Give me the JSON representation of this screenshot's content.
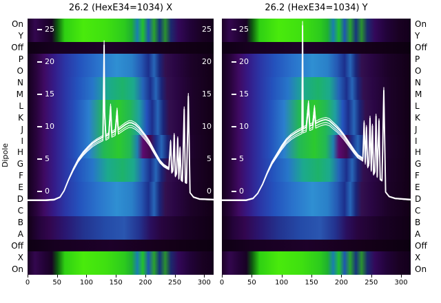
{
  "figure": {
    "ylabel": "Dipole",
    "left_axis_labels": [
      "On",
      "Y",
      "Off",
      "P",
      "O",
      "N",
      "M",
      "L",
      "K",
      "J",
      "I",
      "H",
      "G",
      "F",
      "E",
      "D",
      "C",
      "B",
      "A",
      "Off",
      "X",
      "On"
    ],
    "right_axis_labels": [
      "On",
      "Y",
      "Off",
      "P",
      "O",
      "N",
      "M",
      "L",
      "K",
      "J",
      "I",
      "H",
      "G",
      "F",
      "E",
      "D",
      "C",
      "B",
      "A",
      "Off",
      "X",
      "On"
    ]
  },
  "heatmap_profiles": {
    "bright": [
      [
        0,
        "#1d0128"
      ],
      [
        4,
        "#33074e"
      ],
      [
        8,
        "#26033b"
      ],
      [
        13,
        "#180124"
      ],
      [
        16,
        "#0e5a10"
      ],
      [
        20,
        "#2fd013"
      ],
      [
        30,
        "#49ea0c"
      ],
      [
        42,
        "#3fe010"
      ],
      [
        52,
        "#2ccb1d"
      ],
      [
        56,
        "#1fb030"
      ],
      [
        59,
        "#1a7fae"
      ],
      [
        62,
        "#23c12c"
      ],
      [
        65,
        "#1e56b0"
      ],
      [
        68,
        "#2aa32e"
      ],
      [
        71,
        "#17347e"
      ],
      [
        74,
        "#2a9130"
      ],
      [
        77,
        "#1b2a6e"
      ],
      [
        81,
        "#33085a"
      ],
      [
        87,
        "#22033a"
      ],
      [
        94,
        "#190122"
      ],
      [
        100,
        "#13001b"
      ]
    ],
    "off": [
      [
        0,
        "#0e0013"
      ],
      [
        15,
        "#170020"
      ],
      [
        45,
        "#1d0129"
      ],
      [
        75,
        "#150019"
      ],
      [
        100,
        "#0c0010"
      ]
    ],
    "mid_blue": [
      [
        0,
        "#14001c"
      ],
      [
        5,
        "#2a043f"
      ],
      [
        9,
        "#3f0a63"
      ],
      [
        14,
        "#351a86"
      ],
      [
        20,
        "#2b35a5"
      ],
      [
        28,
        "#2453bd"
      ],
      [
        38,
        "#2a74cc"
      ],
      [
        48,
        "#2f8fd2"
      ],
      [
        56,
        "#2a80c8"
      ],
      [
        61,
        "#2559b4"
      ],
      [
        65,
        "#1c2f8c"
      ],
      [
        68,
        "#2766b8"
      ],
      [
        71,
        "#1a2578"
      ],
      [
        74,
        "#33104f"
      ],
      [
        79,
        "#2a0644"
      ],
      [
        88,
        "#1c0228"
      ],
      [
        100,
        "#120016"
      ]
    ],
    "mid_teal": [
      [
        0,
        "#14001c"
      ],
      [
        5,
        "#2a043f"
      ],
      [
        9,
        "#3f0a63"
      ],
      [
        14,
        "#351a86"
      ],
      [
        20,
        "#2b35a5"
      ],
      [
        27,
        "#2453bd"
      ],
      [
        35,
        "#2776c9"
      ],
      [
        43,
        "#1ca98e"
      ],
      [
        51,
        "#1db36a"
      ],
      [
        57,
        "#1ca98e"
      ],
      [
        62,
        "#2563b8"
      ],
      [
        66,
        "#1c2f8c"
      ],
      [
        69,
        "#2766b8"
      ],
      [
        72,
        "#1a2578"
      ],
      [
        75,
        "#33104f"
      ],
      [
        80,
        "#2a0644"
      ],
      [
        89,
        "#1c0228"
      ],
      [
        100,
        "#120016"
      ]
    ],
    "mid_green": [
      [
        0,
        "#14001c"
      ],
      [
        5,
        "#2a043f"
      ],
      [
        9,
        "#3f0a63"
      ],
      [
        14,
        "#351a86"
      ],
      [
        20,
        "#2b35a5"
      ],
      [
        26,
        "#2453bd"
      ],
      [
        33,
        "#2b7fce"
      ],
      [
        41,
        "#23b855"
      ],
      [
        49,
        "#2cc92e"
      ],
      [
        55,
        "#23b855"
      ],
      [
        60,
        "#1f9fa0"
      ],
      [
        64,
        "#2453bd"
      ],
      [
        67,
        "#1c2f8c"
      ],
      [
        70,
        "#2766b8"
      ],
      [
        73,
        "#1a2578"
      ],
      [
        76,
        "#33104f"
      ],
      [
        81,
        "#2a0644"
      ],
      [
        89,
        "#1c0228"
      ],
      [
        100,
        "#120016"
      ]
    ],
    "mid_green_mag": [
      [
        0,
        "#14001c"
      ],
      [
        5,
        "#2a043f"
      ],
      [
        9,
        "#3f0a63"
      ],
      [
        14,
        "#351a86"
      ],
      [
        20,
        "#2b35a5"
      ],
      [
        26,
        "#2453bd"
      ],
      [
        33,
        "#2b7fce"
      ],
      [
        41,
        "#23b855"
      ],
      [
        49,
        "#2cc92e"
      ],
      [
        55,
        "#23b855"
      ],
      [
        59,
        "#1f80b0"
      ],
      [
        62,
        "#5c0a6e"
      ],
      [
        66,
        "#43084f"
      ],
      [
        69,
        "#1c2f8c"
      ],
      [
        72,
        "#2766b8"
      ],
      [
        75,
        "#1a2578"
      ],
      [
        78,
        "#33104f"
      ],
      [
        82,
        "#2a0644"
      ],
      [
        90,
        "#1c0228"
      ],
      [
        100,
        "#120016"
      ]
    ],
    "mid_dark": [
      [
        0,
        "#120016"
      ],
      [
        6,
        "#24033a"
      ],
      [
        12,
        "#32064e"
      ],
      [
        20,
        "#2a1670"
      ],
      [
        30,
        "#23338f"
      ],
      [
        42,
        "#244ba8"
      ],
      [
        52,
        "#2a56b0"
      ],
      [
        60,
        "#23338f"
      ],
      [
        66,
        "#2a0f5e"
      ],
      [
        72,
        "#28053f"
      ],
      [
        84,
        "#1a0126"
      ],
      [
        100,
        "#100014"
      ]
    ]
  },
  "chart_data": [
    {
      "type": "heatmap",
      "title": "26.2 (HexE34=1034) X",
      "xlabel": "",
      "ylabel": "Dipole",
      "x_ticks": [
        0,
        50,
        100,
        150,
        200,
        250,
        300
      ],
      "x_range": [
        0,
        316
      ],
      "rows": [
        "On",
        "Y",
        "Off",
        "P",
        "O",
        "N",
        "M",
        "L",
        "K",
        "J",
        "I",
        "H",
        "G",
        "F",
        "E",
        "D",
        "C",
        "B",
        "A",
        "Off",
        "X",
        "On"
      ],
      "row_profiles": [
        "bright",
        "bright",
        "off",
        "mid_blue",
        "mid_blue",
        "mid_teal",
        "mid_teal",
        "mid_green",
        "mid_green",
        "mid_green",
        "mid_green_mag",
        "mid_green_mag",
        "mid_teal",
        "mid_teal",
        "mid_blue",
        "mid_blue",
        "mid_blue",
        "mid_dark",
        "mid_dark",
        "off",
        "bright",
        "bright"
      ],
      "overlay_y_ticks": [
        25,
        20,
        15,
        10,
        5,
        0
      ],
      "overlay_y_range": [
        -13,
        26.6
      ],
      "show_right_ticks": true,
      "band_scales": [
        1.0,
        0.96,
        1.03,
        0.93
      ],
      "overlay_series": [
        {
          "name": "ensemble-trace-x",
          "points": [
            [
              0,
              -1.5
            ],
            [
              30,
              -1.5
            ],
            [
              45,
              -1.4
            ],
            [
              55,
              -1.0
            ],
            [
              62,
              0.0
            ],
            [
              70,
              1.8
            ],
            [
              78,
              3.4
            ],
            [
              86,
              4.8
            ],
            [
              94,
              5.8
            ],
            [
              102,
              6.6
            ],
            [
              110,
              7.3
            ],
            [
              118,
              7.8
            ],
            [
              126,
              8.2
            ],
            [
              128,
              8.3
            ],
            [
              129,
              15.0
            ],
            [
              130,
              22.5
            ],
            [
              131,
              12.0
            ],
            [
              133,
              8.4
            ],
            [
              138,
              8.7
            ],
            [
              141,
              13.0
            ],
            [
              143,
              8.9
            ],
            [
              149,
              9.2
            ],
            [
              152,
              12.4
            ],
            [
              154,
              9.4
            ],
            [
              160,
              9.8
            ],
            [
              166,
              10.2
            ],
            [
              172,
              10.5
            ],
            [
              177,
              10.5
            ],
            [
              183,
              10.2
            ],
            [
              189,
              9.7
            ],
            [
              195,
              9.0
            ],
            [
              201,
              8.3
            ],
            [
              207,
              7.5
            ],
            [
              213,
              6.5
            ],
            [
              219,
              5.5
            ],
            [
              225,
              4.6
            ],
            [
              231,
              4.0
            ],
            [
              236,
              3.7
            ],
            [
              240,
              3.5
            ],
            [
              243,
              7.6
            ],
            [
              245,
              2.9
            ],
            [
              247,
              3.2
            ],
            [
              249,
              8.6
            ],
            [
              251,
              2.3
            ],
            [
              253,
              2.7
            ],
            [
              255,
              8.1
            ],
            [
              257,
              1.9
            ],
            [
              259,
              6.6
            ],
            [
              261,
              1.7
            ],
            [
              263,
              1.5
            ],
            [
              266,
              12.6
            ],
            [
              268,
              1.3
            ],
            [
              270,
              1.2
            ],
            [
              273,
              14.6
            ],
            [
              276,
              -0.3
            ],
            [
              282,
              -1.0
            ],
            [
              292,
              -1.3
            ],
            [
              316,
              -1.4
            ]
          ]
        }
      ]
    },
    {
      "type": "heatmap",
      "title": "26.2 (HexE34=1034) Y",
      "xlabel": "",
      "ylabel": "Dipole",
      "x_ticks": [
        0,
        50,
        100,
        150,
        200,
        250,
        300
      ],
      "x_range": [
        0,
        316
      ],
      "rows": [
        "On",
        "Y",
        "Off",
        "P",
        "O",
        "N",
        "M",
        "L",
        "K",
        "J",
        "I",
        "H",
        "G",
        "F",
        "E",
        "D",
        "C",
        "B",
        "A",
        "Off",
        "X",
        "On"
      ],
      "row_profiles": [
        "bright",
        "bright",
        "off",
        "mid_blue",
        "mid_blue",
        "mid_teal",
        "mid_teal",
        "mid_green",
        "mid_green",
        "mid_green",
        "mid_green_mag",
        "mid_green_mag",
        "mid_teal",
        "mid_teal",
        "mid_blue",
        "mid_blue",
        "mid_blue",
        "mid_dark",
        "mid_dark",
        "off",
        "bright",
        "bright"
      ],
      "overlay_y_ticks": [
        25,
        20,
        15,
        10,
        5,
        0
      ],
      "overlay_y_range": [
        -13,
        26.6
      ],
      "show_right_ticks": false,
      "band_scales": [
        1.0,
        0.96,
        1.03,
        0.93
      ],
      "overlay_series": [
        {
          "name": "ensemble-trace-y",
          "points": [
            [
              0,
              -1.5
            ],
            [
              40,
              -1.5
            ],
            [
              52,
              -1.2
            ],
            [
              60,
              -0.4
            ],
            [
              68,
              1.0
            ],
            [
              76,
              2.8
            ],
            [
              84,
              4.4
            ],
            [
              92,
              5.6
            ],
            [
              100,
              6.8
            ],
            [
              108,
              7.8
            ],
            [
              116,
              8.5
            ],
            [
              124,
              9.0
            ],
            [
              130,
              9.3
            ],
            [
              134,
              9.5
            ],
            [
              135,
              25.5
            ],
            [
              136,
              9.6
            ],
            [
              141,
              9.8
            ],
            [
              145,
              13.5
            ],
            [
              147,
              10.0
            ],
            [
              152,
              10.2
            ],
            [
              155,
              12.8
            ],
            [
              157,
              10.4
            ],
            [
              163,
              10.7
            ],
            [
              169,
              10.9
            ],
            [
              174,
              11.0
            ],
            [
              180,
              10.8
            ],
            [
              186,
              10.3
            ],
            [
              192,
              9.8
            ],
            [
              198,
              9.2
            ],
            [
              204,
              8.5
            ],
            [
              210,
              7.7
            ],
            [
              216,
              6.9
            ],
            [
              222,
              6.1
            ],
            [
              228,
              5.4
            ],
            [
              233,
              5.1
            ],
            [
              236,
              4.9
            ],
            [
              238,
              10.5
            ],
            [
              240,
              4.4
            ],
            [
              242,
              9.8
            ],
            [
              244,
              3.8
            ],
            [
              246,
              4.2
            ],
            [
              248,
              11.2
            ],
            [
              250,
              3.2
            ],
            [
              252,
              10.0
            ],
            [
              254,
              2.6
            ],
            [
              256,
              3.0
            ],
            [
              258,
              11.5
            ],
            [
              260,
              2.2
            ],
            [
              263,
              10.8
            ],
            [
              265,
              1.8
            ],
            [
              268,
              1.6
            ],
            [
              271,
              15.5
            ],
            [
              274,
              -0.2
            ],
            [
              280,
              -0.9
            ],
            [
              290,
              -1.2
            ],
            [
              316,
              -1.4
            ]
          ]
        }
      ]
    }
  ]
}
